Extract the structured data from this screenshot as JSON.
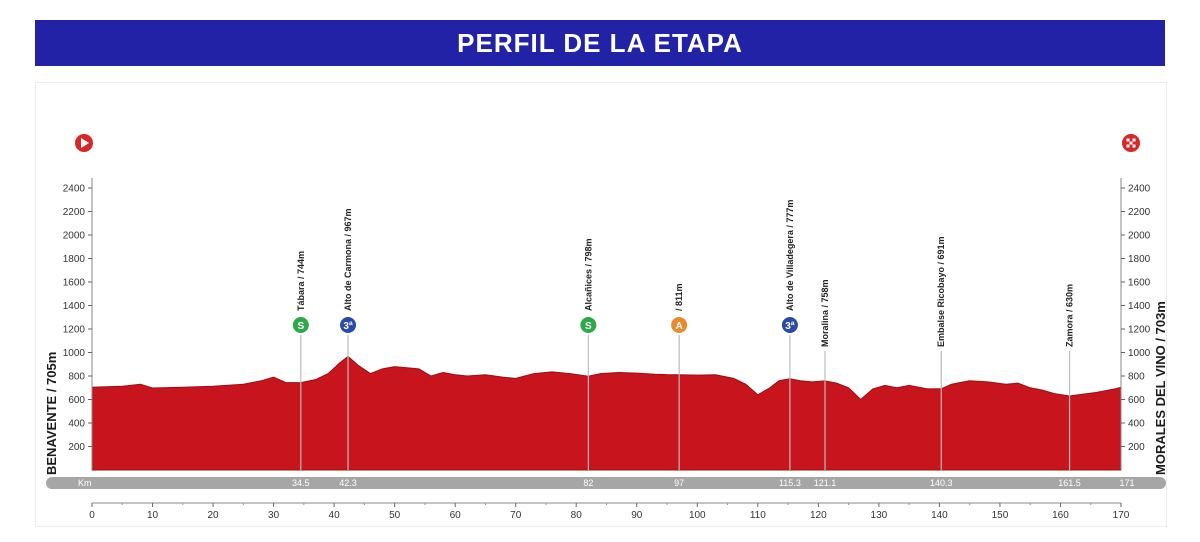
{
  "header": {
    "title": "PERFIL DE LA ETAPA"
  },
  "chart_data": {
    "type": "area",
    "title": "",
    "start_label": "BENAVENTE / 705m",
    "finish_label": "MORALES DEL VINO / 703m",
    "km_label": "Km",
    "xlim": [
      0,
      171
    ],
    "ylim": [
      0,
      2600
    ],
    "x_ticks": [
      0,
      10,
      20,
      30,
      40,
      50,
      60,
      70,
      80,
      90,
      100,
      110,
      120,
      130,
      140,
      150,
      160,
      170
    ],
    "y_ticks": [
      200,
      400,
      600,
      800,
      1000,
      1200,
      1400,
      1600,
      1800,
      2000,
      2200,
      2400
    ],
    "fill_color": "#c8141c",
    "profile": [
      [
        0,
        705
      ],
      [
        5,
        712
      ],
      [
        8,
        730
      ],
      [
        10,
        698
      ],
      [
        15,
        705
      ],
      [
        20,
        712
      ],
      [
        25,
        730
      ],
      [
        28,
        760
      ],
      [
        30,
        790
      ],
      [
        32,
        745
      ],
      [
        34.5,
        744
      ],
      [
        37,
        770
      ],
      [
        39,
        820
      ],
      [
        41,
        915
      ],
      [
        42.3,
        967
      ],
      [
        44,
        890
      ],
      [
        46,
        820
      ],
      [
        48,
        860
      ],
      [
        50,
        880
      ],
      [
        52,
        870
      ],
      [
        54,
        860
      ],
      [
        56,
        800
      ],
      [
        58,
        830
      ],
      [
        60,
        810
      ],
      [
        62,
        800
      ],
      [
        65,
        810
      ],
      [
        68,
        790
      ],
      [
        70,
        780
      ],
      [
        73,
        820
      ],
      [
        76,
        835
      ],
      [
        79,
        820
      ],
      [
        82,
        798
      ],
      [
        84,
        820
      ],
      [
        87,
        830
      ],
      [
        90,
        825
      ],
      [
        93,
        815
      ],
      [
        95,
        812
      ],
      [
        97,
        811
      ],
      [
        100,
        808
      ],
      [
        103,
        810
      ],
      [
        106,
        780
      ],
      [
        108,
        730
      ],
      [
        110,
        640
      ],
      [
        112,
        700
      ],
      [
        113.5,
        760
      ],
      [
        115.3,
        777
      ],
      [
        117,
        760
      ],
      [
        119,
        750
      ],
      [
        121.1,
        758
      ],
      [
        123,
        740
      ],
      [
        125,
        700
      ],
      [
        127,
        600
      ],
      [
        129,
        690
      ],
      [
        131,
        720
      ],
      [
        133,
        700
      ],
      [
        135,
        720
      ],
      [
        138,
        690
      ],
      [
        140.3,
        691
      ],
      [
        142,
        730
      ],
      [
        145,
        760
      ],
      [
        148,
        750
      ],
      [
        151,
        730
      ],
      [
        153,
        740
      ],
      [
        155,
        700
      ],
      [
        157,
        680
      ],
      [
        159,
        650
      ],
      [
        161.5,
        630
      ],
      [
        163,
        640
      ],
      [
        166,
        660
      ],
      [
        169,
        690
      ],
      [
        171,
        703
      ]
    ],
    "bottom_km_labels": [
      "34.5",
      "42.3",
      "82",
      "97",
      "115.3",
      "121.1",
      "140.3",
      "161.5",
      "171"
    ],
    "points": [
      {
        "km": 34.5,
        "elev": 744,
        "label": "Tábara / 744m",
        "type": "sprint",
        "badge_text": "S"
      },
      {
        "km": 42.3,
        "elev": 967,
        "label": "Alto de Carmona / 967m",
        "type": "mountain",
        "badge_text": "3ª"
      },
      {
        "km": 82,
        "elev": 798,
        "label": "Alcañices / 798m",
        "type": "sprint",
        "badge_text": "S"
      },
      {
        "km": 97,
        "elev": 811,
        "label": "/ 811m",
        "type": "feed",
        "badge_text": "A"
      },
      {
        "km": 115.3,
        "elev": 777,
        "label": "Alto de Villadegera / 777m",
        "type": "mountain",
        "badge_text": "3ª"
      },
      {
        "km": 121.1,
        "elev": 758,
        "label": "Moralina / 758m",
        "type": "none",
        "badge_text": ""
      },
      {
        "km": 140.3,
        "elev": 691,
        "label": "Embalse Ricobayo / 691m",
        "type": "none",
        "badge_text": ""
      },
      {
        "km": 161.5,
        "elev": 630,
        "label": "Zamora / 630m",
        "type": "none",
        "badge_text": ""
      }
    ],
    "badge_colors": {
      "sprint": "#2ea84a",
      "mountain": "#2b4aa8",
      "feed": "#e88a2e"
    },
    "icons": {
      "start": "play-icon",
      "finish": "checkered-flag-icon"
    }
  }
}
